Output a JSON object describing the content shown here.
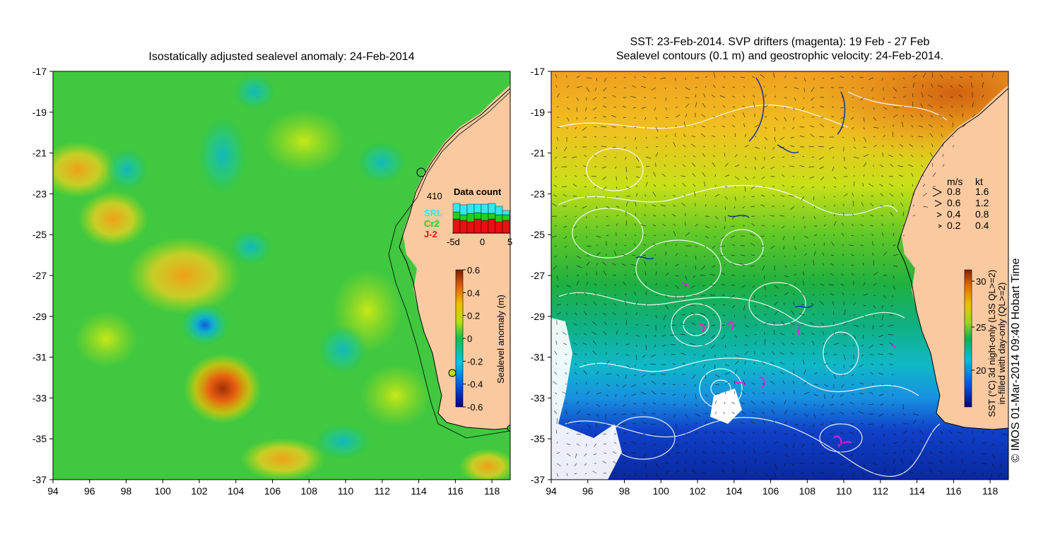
{
  "left_panel": {
    "title": "Isostatically adjusted sealevel anomaly: 24-Feb-2014",
    "colorbar": {
      "label": "Sealevel anomaly (m)",
      "ticks": [
        "0.6",
        "0.4",
        "0.2",
        "0",
        "-0.2",
        "-0.4",
        "-0.6"
      ],
      "colors": [
        "#000080",
        "#0050e0",
        "#00c8e8",
        "#10c050",
        "#b8e010",
        "#f0c000",
        "#e06010",
        "#7a1e00"
      ]
    },
    "data_count": {
      "total": "410",
      "title": "Data count",
      "sources": [
        {
          "name": "SRL",
          "color": "#30e8f0"
        },
        {
          "name": "Cr2",
          "color": "#20d020"
        },
        {
          "name": "J-2",
          "color": "#e81010"
        }
      ],
      "axis": [
        "-5d",
        "0",
        "5"
      ]
    }
  },
  "right_panel": {
    "title_line1": "SST: 23-Feb-2014. SVP drifters (magenta): 19 Feb - 27 Feb",
    "title_line2": "Sealevel contours (0.1 m) and geostrophic velocity: 24-Feb-2014.",
    "colorbar": {
      "label_line1": "SST (°C) 3d night-only (L3S QL>=2)",
      "label_line2": "in-filled with day-only (QL>=2)",
      "ticks": [
        "30",
        "25",
        "20"
      ],
      "colors": [
        "#000080",
        "#0060e0",
        "#00c0d8",
        "#10b050",
        "#a0d820",
        "#f0c000",
        "#e07000",
        "#8a2000"
      ]
    },
    "velocity_legend": {
      "header_ms": "m/s",
      "header_kt": "kt",
      "rows": [
        {
          "ms": "0.8",
          "kt": "1.6"
        },
        {
          "ms": "0.6",
          "kt": "1.2"
        },
        {
          "ms": "0.4",
          "kt": "0.8"
        },
        {
          "ms": "0.2",
          "kt": "0.4"
        }
      ]
    },
    "credit": "© IMOS 01-Mar-2014 09:40 Hobart Time"
  },
  "axes": {
    "x_ticks": [
      "94",
      "96",
      "98",
      "100",
      "102",
      "104",
      "106",
      "108",
      "110",
      "112",
      "114",
      "116",
      "118"
    ],
    "y_ticks": [
      "-17",
      "-19",
      "-21",
      "-23",
      "-25",
      "-27",
      "-29",
      "-31",
      "-33",
      "-35",
      "-37"
    ]
  },
  "colors": {
    "land": "#f9c9a0",
    "sla_base": "#3cc83c",
    "sst_warm": "#f0a020",
    "sst_cold": "#1040c0",
    "drifter": "#e020e0"
  }
}
